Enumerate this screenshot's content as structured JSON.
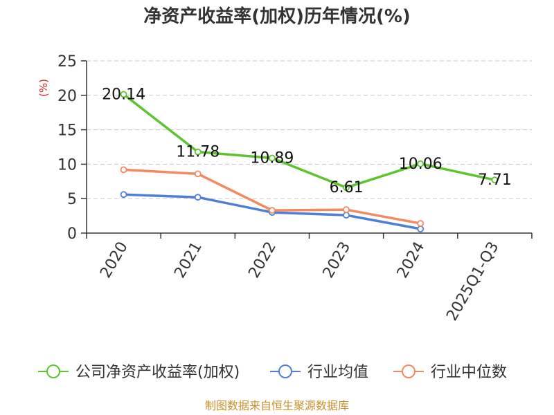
{
  "chart_data": {
    "type": "line",
    "title": "净资产收益率(加权)历年情况(%)",
    "ylabel": "(%)",
    "xlabel": "",
    "categories": [
      "2020",
      "2021",
      "2022",
      "2023",
      "2024",
      "2025Q1-Q3"
    ],
    "ylim": [
      0,
      25
    ],
    "yticks": [
      0,
      5,
      10,
      15,
      20,
      25
    ],
    "grid": true,
    "legend_position": "bottom",
    "series": [
      {
        "name": "公司净资产收益率(加权)",
        "color": "#5cc42c",
        "values": [
          20.14,
          11.78,
          10.89,
          6.61,
          10.06,
          7.71
        ],
        "labels": [
          "20.14",
          "11.78",
          "10.89",
          "6.61",
          "10.06",
          "7.71"
        ]
      },
      {
        "name": "行业均值",
        "color": "#4e7fd8",
        "values": [
          5.6,
          5.2,
          3.0,
          2.6,
          0.6,
          null
        ]
      },
      {
        "name": "行业中位数",
        "color": "#f4895f",
        "values": [
          9.2,
          8.6,
          3.3,
          3.4,
          1.4,
          null
        ]
      }
    ]
  },
  "source": "制图数据来自恒生聚源数据库"
}
